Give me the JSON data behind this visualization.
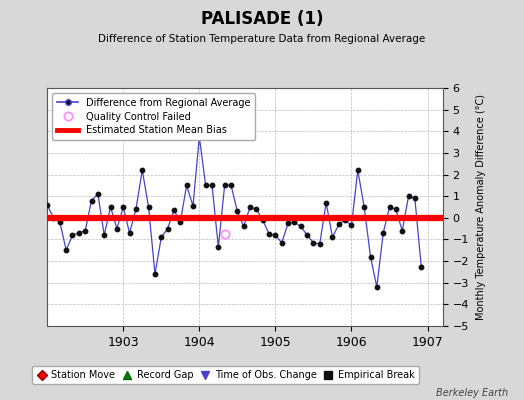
{
  "title": "PALISADE (1)",
  "subtitle": "Difference of Station Temperature Data from Regional Average",
  "ylabel": "Monthly Temperature Anomaly Difference (°C)",
  "xlabel_ticks": [
    1903,
    1904,
    1905,
    1906,
    1907
  ],
  "ylim": [
    -5,
    6
  ],
  "xlim": [
    1902.0,
    1907.2
  ],
  "bias_value": 0.0,
  "background_color": "#d8d8d8",
  "plot_bg_color": "#ffffff",
  "grid_color": "#bbbbbb",
  "x_data": [
    1902.0,
    1902.083,
    1902.167,
    1902.25,
    1902.333,
    1902.417,
    1902.5,
    1902.583,
    1902.667,
    1902.75,
    1902.833,
    1902.917,
    1903.0,
    1903.083,
    1903.167,
    1903.25,
    1903.333,
    1903.417,
    1903.5,
    1903.583,
    1903.667,
    1903.75,
    1903.833,
    1903.917,
    1904.0,
    1904.083,
    1904.167,
    1904.25,
    1904.333,
    1904.417,
    1904.5,
    1904.583,
    1904.667,
    1904.75,
    1904.833,
    1904.917,
    1905.0,
    1905.083,
    1905.167,
    1905.25,
    1905.333,
    1905.417,
    1905.5,
    1905.583,
    1905.667,
    1905.75,
    1905.833,
    1905.917,
    1906.0,
    1906.083,
    1906.167,
    1906.25,
    1906.333,
    1906.417,
    1906.5,
    1906.583,
    1906.667,
    1906.75,
    1906.833,
    1906.917
  ],
  "y_data": [
    0.6,
    0.0,
    -0.2,
    -1.5,
    -0.8,
    -0.7,
    -0.6,
    0.8,
    1.1,
    -0.8,
    0.5,
    -0.5,
    0.5,
    -0.7,
    0.4,
    2.2,
    0.5,
    -2.6,
    -0.9,
    -0.5,
    0.35,
    -0.2,
    1.5,
    0.55,
    3.75,
    1.5,
    1.5,
    -1.35,
    1.5,
    1.5,
    0.3,
    -0.4,
    0.5,
    0.4,
    -0.1,
    -0.75,
    -0.8,
    -1.15,
    -0.25,
    -0.2,
    -0.4,
    -0.8,
    -1.15,
    -1.2,
    0.7,
    -0.9,
    -0.3,
    -0.1,
    -0.35,
    2.2,
    0.5,
    -1.8,
    -3.2,
    -0.7,
    0.5,
    0.4,
    -0.6,
    1.0,
    0.9,
    -2.25
  ],
  "qc_failed_x": [
    1904.333
  ],
  "qc_failed_y": [
    -0.75
  ],
  "line_color": "#4444cc",
  "marker_color": "#111111",
  "bias_color": "#ff0000",
  "qc_color": "#ff88ff",
  "watermark": "Berkeley Earth",
  "bias_linewidth": 4.5
}
